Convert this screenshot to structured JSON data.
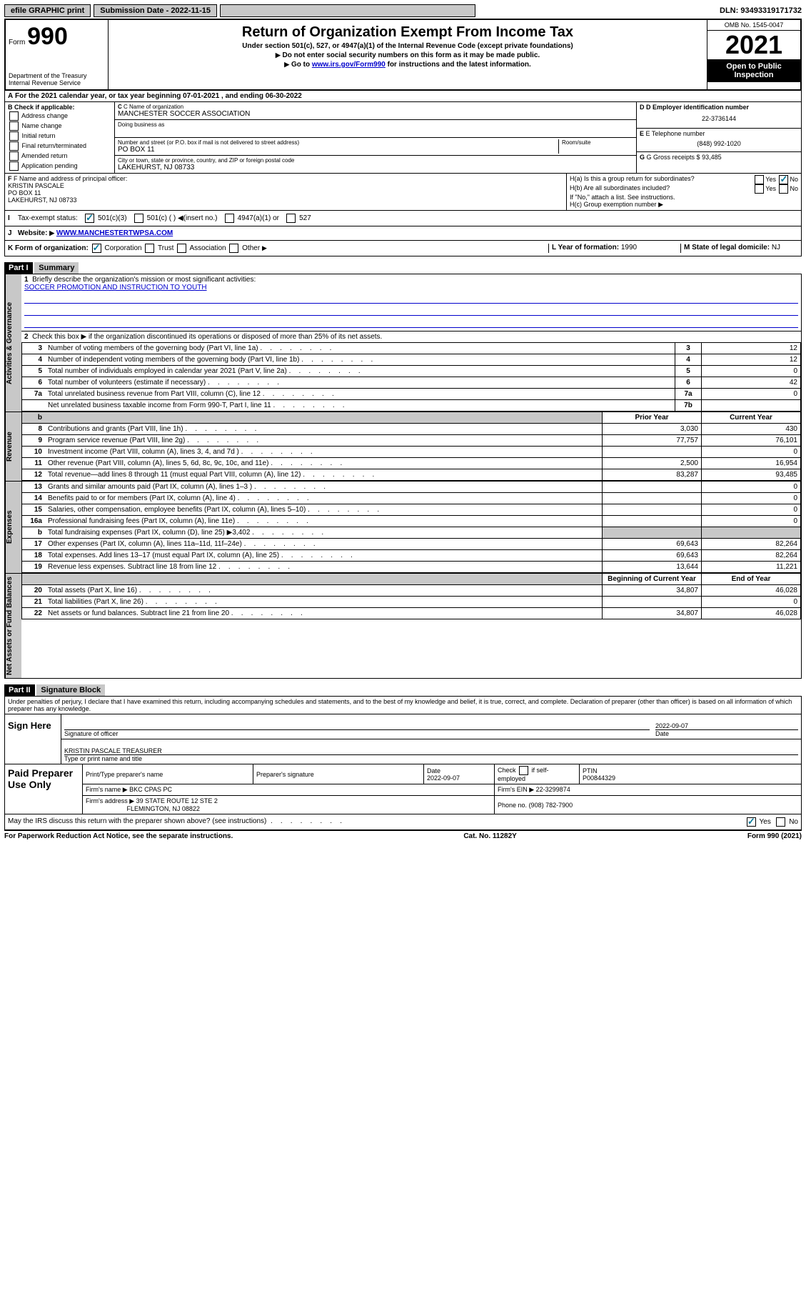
{
  "top": {
    "efile": "efile GRAPHIC print",
    "submission_label": "Submission Date - 2022-11-15",
    "dln": "DLN: 93493319171732"
  },
  "header": {
    "form_label": "Form",
    "form_number": "990",
    "title": "Return of Organization Exempt From Income Tax",
    "subtitle": "Under section 501(c), 527, or 4947(a)(1) of the Internal Revenue Code (except private foundations)",
    "line1": "Do not enter social security numbers on this form as it may be made public.",
    "line2_pre": "Go to ",
    "line2_link": "www.irs.gov/Form990",
    "line2_post": " for instructions and the latest information.",
    "dept": "Department of the Treasury\nInternal Revenue Service",
    "omb": "OMB No. 1545-0047",
    "year": "2021",
    "open_public": "Open to Public Inspection"
  },
  "section_a": "For the 2021 calendar year, or tax year beginning 07-01-2021   , and ending 06-30-2022",
  "col_b": {
    "label": "B Check if applicable:",
    "items": [
      "Address change",
      "Name change",
      "Initial return",
      "Final return/terminated",
      "Amended return",
      "Application pending"
    ]
  },
  "col_c": {
    "name_label": "C Name of organization",
    "name": "MANCHESTER SOCCER ASSOCIATION",
    "dba_label": "Doing business as",
    "addr_label": "Number and street (or P.O. box if mail is not delivered to street address)",
    "room_label": "Room/suite",
    "addr": "PO BOX 11",
    "city_label": "City or town, state or province, country, and ZIP or foreign postal code",
    "city": "LAKEHURST, NJ  08733"
  },
  "col_de": {
    "d_label": "D Employer identification number",
    "ein": "22-3736144",
    "e_label": "E Telephone number",
    "phone": "(848) 992-1020",
    "g_label": "G Gross receipts $",
    "gross": "93,485"
  },
  "row_f": {
    "label": "F Name and address of principal officer:",
    "name": "KRISTIN PASCALE",
    "addr1": "PO BOX 11",
    "addr2": "LAKEHURST, NJ  08733"
  },
  "row_h": {
    "ha": "H(a)  Is this a group return for subordinates?",
    "hb": "H(b)  Are all subordinates included?",
    "hb_note": "If \"No,\" attach a list. See instructions.",
    "hc": "H(c)  Group exemption number"
  },
  "row_i": {
    "label": "Tax-exempt status:",
    "opt1": "501(c)(3)",
    "opt2": "501(c) (  )",
    "opt2_note": "(insert no.)",
    "opt3": "4947(a)(1) or",
    "opt4": "527"
  },
  "row_j": {
    "label": "Website:",
    "url": "WWW.MANCHESTERTWPSA.COM"
  },
  "row_k": {
    "label": "K Form of organization:",
    "opts": [
      "Corporation",
      "Trust",
      "Association",
      "Other"
    ]
  },
  "row_l": {
    "label": "L Year of formation:",
    "val": "1990"
  },
  "row_m": {
    "label": "M State of legal domicile:",
    "val": "NJ"
  },
  "part1": {
    "header": "Part I",
    "title": "Summary",
    "q1": "Briefly describe the organization's mission or most significant activities:",
    "mission": "SOCCER PROMOTION AND INSTRUCTION TO YOUTH",
    "q2": "Check this box ▶      if the organization discontinued its operations or disposed of more than 25% of its net assets.",
    "rows_gov": [
      {
        "n": "3",
        "d": "Number of voting members of the governing body (Part VI, line 1a)",
        "box": "3",
        "v": "12"
      },
      {
        "n": "4",
        "d": "Number of independent voting members of the governing body (Part VI, line 1b)",
        "box": "4",
        "v": "12"
      },
      {
        "n": "5",
        "d": "Total number of individuals employed in calendar year 2021 (Part V, line 2a)",
        "box": "5",
        "v": "0"
      },
      {
        "n": "6",
        "d": "Total number of volunteers (estimate if necessary)",
        "box": "6",
        "v": "42"
      },
      {
        "n": "7a",
        "d": "Total unrelated business revenue from Part VIII, column (C), line 12",
        "box": "7a",
        "v": "0"
      },
      {
        "n": "",
        "d": "Net unrelated business taxable income from Form 990-T, Part I, line 11",
        "box": "7b",
        "v": ""
      }
    ],
    "col_headers": {
      "prior": "Prior Year",
      "current": "Current Year",
      "boy": "Beginning of Current Year",
      "eoy": "End of Year"
    },
    "rows_rev": [
      {
        "n": "8",
        "d": "Contributions and grants (Part VIII, line 1h)",
        "p": "3,030",
        "c": "430"
      },
      {
        "n": "9",
        "d": "Program service revenue (Part VIII, line 2g)",
        "p": "77,757",
        "c": "76,101"
      },
      {
        "n": "10",
        "d": "Investment income (Part VIII, column (A), lines 3, 4, and 7d )",
        "p": "",
        "c": "0"
      },
      {
        "n": "11",
        "d": "Other revenue (Part VIII, column (A), lines 5, 6d, 8c, 9c, 10c, and 11e)",
        "p": "2,500",
        "c": "16,954"
      },
      {
        "n": "12",
        "d": "Total revenue—add lines 8 through 11 (must equal Part VIII, column (A), line 12)",
        "p": "83,287",
        "c": "93,485"
      }
    ],
    "rows_exp": [
      {
        "n": "13",
        "d": "Grants and similar amounts paid (Part IX, column (A), lines 1–3 )",
        "p": "",
        "c": "0"
      },
      {
        "n": "14",
        "d": "Benefits paid to or for members (Part IX, column (A), line 4)",
        "p": "",
        "c": "0"
      },
      {
        "n": "15",
        "d": "Salaries, other compensation, employee benefits (Part IX, column (A), lines 5–10)",
        "p": "",
        "c": "0"
      },
      {
        "n": "16a",
        "d": "Professional fundraising fees (Part IX, column (A), line 11e)",
        "p": "",
        "c": "0"
      },
      {
        "n": "b",
        "d": "Total fundraising expenses (Part IX, column (D), line 25) ▶3,402",
        "p": "grey",
        "c": "grey"
      },
      {
        "n": "17",
        "d": "Other expenses (Part IX, column (A), lines 11a–11d, 11f–24e)",
        "p": "69,643",
        "c": "82,264"
      },
      {
        "n": "18",
        "d": "Total expenses. Add lines 13–17 (must equal Part IX, column (A), line 25)",
        "p": "69,643",
        "c": "82,264"
      },
      {
        "n": "19",
        "d": "Revenue less expenses. Subtract line 18 from line 12",
        "p": "13,644",
        "c": "11,221"
      }
    ],
    "rows_net": [
      {
        "n": "20",
        "d": "Total assets (Part X, line 16)",
        "p": "34,807",
        "c": "46,028"
      },
      {
        "n": "21",
        "d": "Total liabilities (Part X, line 26)",
        "p": "",
        "c": "0"
      },
      {
        "n": "22",
        "d": "Net assets or fund balances. Subtract line 21 from line 20",
        "p": "34,807",
        "c": "46,028"
      }
    ],
    "vtabs": {
      "gov": "Activities & Governance",
      "rev": "Revenue",
      "exp": "Expenses",
      "net": "Net Assets or Fund Balances"
    }
  },
  "part2": {
    "header": "Part II",
    "title": "Signature Block",
    "disclaimer": "Under penalties of perjury, I declare that I have examined this return, including accompanying schedules and statements, and to the best of my knowledge and belief, it is true, correct, and complete. Declaration of preparer (other than officer) is based on all information of which preparer has any knowledge.",
    "sign_here": "Sign Here",
    "sig_officer": "Signature of officer",
    "sig_date_label": "Date",
    "sig_date": "2022-09-07",
    "officer_name": "KRISTIN PASCALE TREASURER",
    "officer_label": "Type or print name and title",
    "paid_prep": "Paid Preparer Use Only",
    "prep_name_label": "Print/Type preparer's name",
    "prep_sig_label": "Preparer's signature",
    "prep_date_label": "Date",
    "prep_date": "2022-09-07",
    "prep_check_label": "Check      if self-employed",
    "ptin_label": "PTIN",
    "ptin": "P00844329",
    "firm_name_label": "Firm's name   ▶",
    "firm_name": "BKC CPAS PC",
    "firm_ein_label": "Firm's EIN ▶",
    "firm_ein": "22-3299874",
    "firm_addr_label": "Firm's address ▶",
    "firm_addr": "39 STATE ROUTE 12 STE 2",
    "firm_city": "FLEMINGTON, NJ  08822",
    "firm_phone_label": "Phone no.",
    "firm_phone": "(908) 782-7900",
    "may_irs": "May the IRS discuss this return with the preparer shown above? (see instructions)"
  },
  "footer": {
    "left": "For Paperwork Reduction Act Notice, see the separate instructions.",
    "center": "Cat. No. 11282Y",
    "right": "Form 990 (2021)"
  },
  "labels": {
    "yes": "Yes",
    "no": "No"
  }
}
